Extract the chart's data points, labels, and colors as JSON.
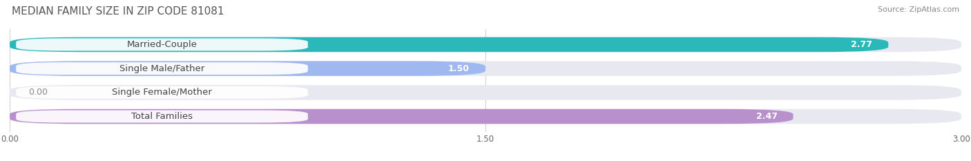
{
  "title": "MEDIAN FAMILY SIZE IN ZIP CODE 81081",
  "source": "Source: ZipAtlas.com",
  "categories": [
    "Married-Couple",
    "Single Male/Father",
    "Single Female/Mother",
    "Total Families"
  ],
  "values": [
    2.77,
    1.5,
    0.0,
    2.47
  ],
  "bar_colors": [
    "#2ab8b8",
    "#a0b8f0",
    "#f4a0b8",
    "#b890cc"
  ],
  "track_color": "#e8e8f0",
  "bg_color": "#ffffff",
  "xlim_max": 3.0,
  "xticks": [
    0.0,
    1.5,
    3.0
  ],
  "xtick_labels": [
    "0.00",
    "1.50",
    "3.00"
  ],
  "label_fontsize": 9.5,
  "value_fontsize": 9,
  "title_fontsize": 11,
  "source_fontsize": 8,
  "bar_height": 0.62,
  "value_inside_color": "#ffffff",
  "value_outside_color": "#888888"
}
